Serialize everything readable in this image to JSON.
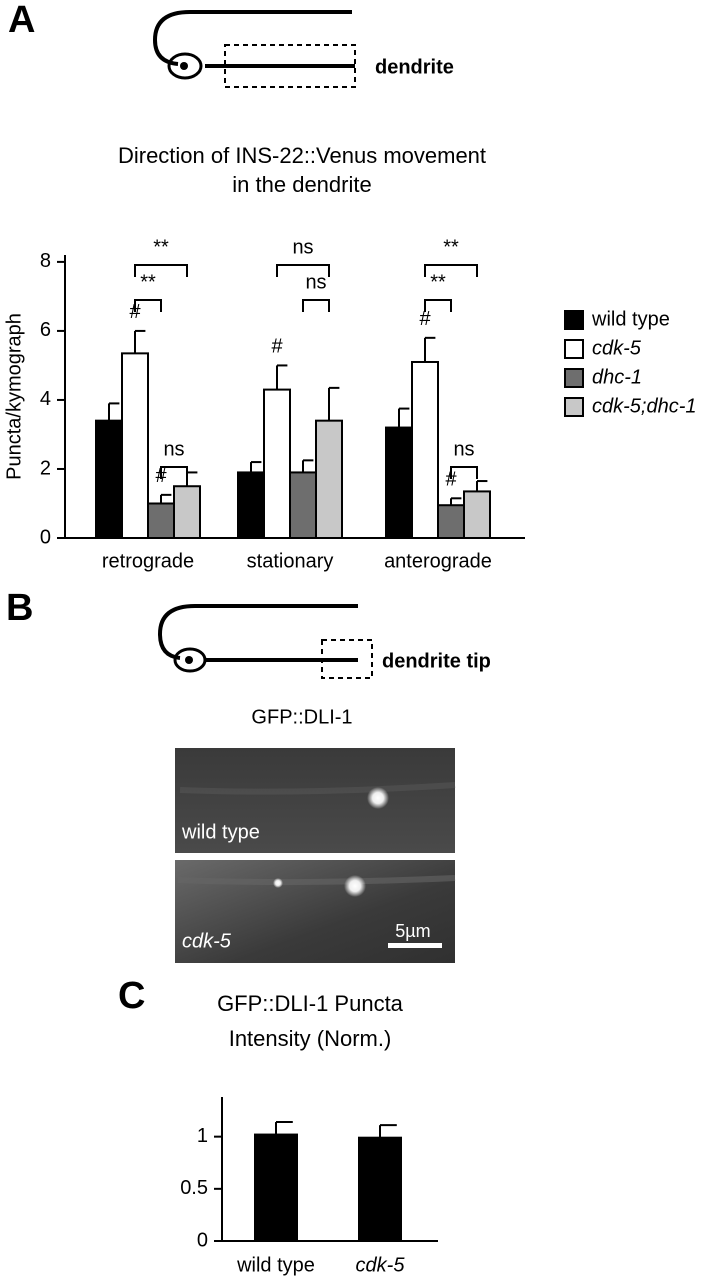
{
  "panels": {
    "a": "A",
    "b": "B",
    "c": "C"
  },
  "diagram_labels": [
    "dendrite",
    "dendrite tip"
  ],
  "micrograph": {
    "title": "GFP::DLI-1",
    "labels": [
      "wild type",
      "cdk-5"
    ],
    "scale_bar": "5µm"
  },
  "chart_data": [
    {
      "type": "bar",
      "title": [
        "Direction of INS-22::Venus movement",
        "in the dendrite"
      ],
      "y_label": "Puncta/kymograph",
      "categories": [
        "retrograde",
        "stationary",
        "anterograde"
      ],
      "series": [
        {
          "name": "wild type",
          "color": "#000000",
          "values": [
            3.4,
            1.9,
            3.2
          ],
          "errors": [
            0.5,
            0.3,
            0.55
          ]
        },
        {
          "name": "cdk-5",
          "color": "#ffffff",
          "values": [
            5.35,
            4.3,
            5.1
          ],
          "errors": [
            0.65,
            0.7,
            0.7
          ]
        },
        {
          "name": "dhc-1",
          "color": "#6e6e6e",
          "values": [
            1.0,
            1.9,
            0.95
          ],
          "errors": [
            0.25,
            0.35,
            0.2
          ]
        },
        {
          "name": "cdk-5;dhc-1",
          "color": "#c8c8c8",
          "values": [
            1.5,
            3.4,
            1.35
          ],
          "errors": [
            0.4,
            0.95,
            0.3
          ]
        }
      ],
      "annotations": [
        "#",
        "#",
        "**",
        "**",
        "ns",
        "#",
        "ns",
        "ns",
        "#",
        "#",
        "**",
        "**",
        "ns"
      ],
      "ylim": [
        0,
        8.2
      ],
      "yticks": [
        0,
        2,
        4,
        6,
        8
      ],
      "legend": "right"
    },
    {
      "type": "bar",
      "title": [
        "GFP::DLI-1 Puncta",
        "Intensity (Norm.)"
      ],
      "categories": [
        "wild type",
        "cdk-5"
      ],
      "values": [
        1.02,
        0.99
      ],
      "errors": [
        0.12,
        0.12
      ],
      "color": "#000000",
      "ylim": [
        0,
        1.38
      ],
      "yticks": [
        0,
        0.5,
        1
      ]
    }
  ]
}
